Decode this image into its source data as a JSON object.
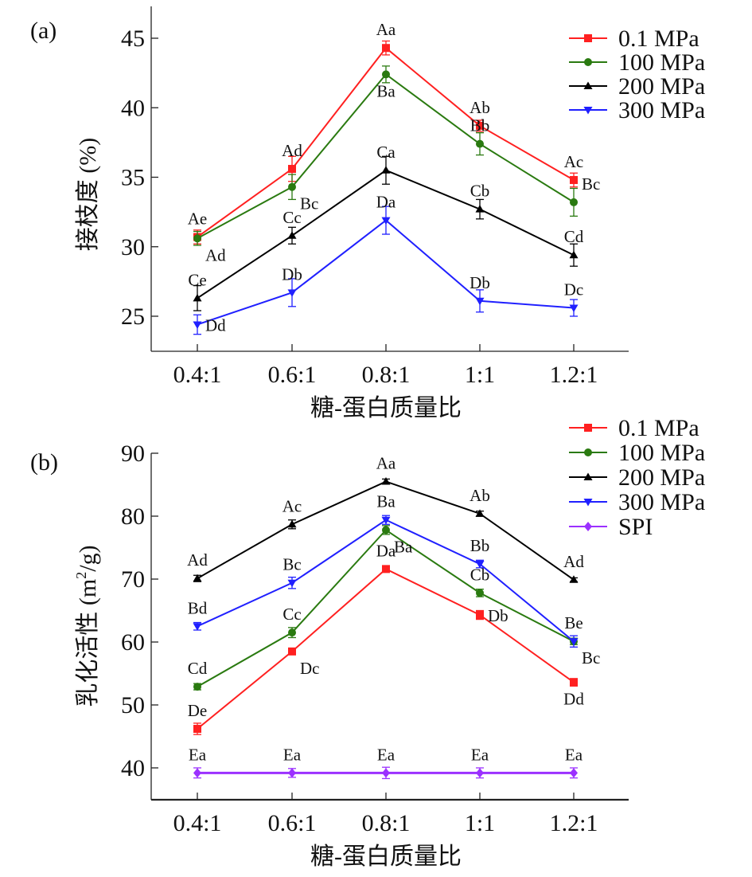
{
  "chart_data": [
    {
      "type": "line",
      "panel_label": "(a)",
      "title": "",
      "xlabel": "糖-蛋白质量比",
      "ylabel": "接枝度 (%)",
      "categories": [
        "0.4:1",
        "0.6:1",
        "0.8:1",
        "1:1",
        "1.2:1"
      ],
      "ylim": [
        22.5,
        47.5
      ],
      "yticks": [
        25,
        30,
        35,
        40,
        45
      ],
      "grid": false,
      "legend_position": "top-right",
      "series": [
        {
          "name": "0.1 MPa",
          "color": "#ff2020",
          "marker": "square",
          "values": [
            30.7,
            35.6,
            44.3,
            38.7,
            34.8
          ],
          "errors": [
            0.5,
            0.9,
            0.5,
            0.4,
            0.5
          ],
          "labels": [
            "Ae",
            "Ad",
            "Aa",
            "Ab",
            "Ac"
          ]
        },
        {
          "name": "100 MPa",
          "color": "#2a7a10",
          "marker": "circle",
          "values": [
            30.6,
            34.3,
            42.4,
            37.4,
            33.2
          ],
          "errors": [
            0.5,
            0.9,
            0.6,
            0.8,
            1.0
          ],
          "labels": [
            "Ad",
            "Bc",
            "Ba",
            "Bb",
            "Bc"
          ]
        },
        {
          "name": "200 MPa",
          "color": "#000000",
          "marker": "triangle-up",
          "values": [
            26.3,
            30.8,
            35.5,
            32.7,
            29.4
          ],
          "errors": [
            0.9,
            0.6,
            1.0,
            0.7,
            0.8
          ],
          "labels": [
            "Ce",
            "Cc",
            "Ca",
            "Cb",
            "Cd"
          ]
        },
        {
          "name": "300 MPa",
          "color": "#2020ff",
          "marker": "triangle-down",
          "values": [
            24.4,
            26.7,
            31.9,
            26.1,
            25.6
          ],
          "errors": [
            0.7,
            1.0,
            1.0,
            0.8,
            0.6
          ],
          "labels": [
            "Dd",
            "Db",
            "Da",
            "Db",
            "Dc"
          ]
        }
      ]
    },
    {
      "type": "line",
      "panel_label": "(b)",
      "title": "",
      "xlabel": "糖-蛋白质量比",
      "ylabel": "乳化活性 (m²/g)",
      "categories": [
        "0.4:1",
        "0.6:1",
        "0.8:1",
        "1:1",
        "1.2:1"
      ],
      "ylim": [
        35,
        90
      ],
      "yticks": [
        40,
        50,
        60,
        70,
        80,
        90
      ],
      "grid": false,
      "legend_position": "top-right",
      "series": [
        {
          "name": "0.1 MPa",
          "color": "#ff2020",
          "marker": "square",
          "values": [
            46.2,
            58.5,
            71.6,
            64.3,
            53.6
          ],
          "errors": [
            0.9,
            0.5,
            0.5,
            0.7,
            0.6
          ],
          "labels": [
            "De",
            "Dc",
            "Da",
            "Db",
            "Dd"
          ]
        },
        {
          "name": "100 MPa",
          "color": "#2a7a10",
          "marker": "circle",
          "values": [
            52.9,
            61.5,
            77.8,
            67.8,
            60.1
          ],
          "errors": [
            0.5,
            0.8,
            0.7,
            0.6,
            0.5
          ],
          "labels": [
            "Cd",
            "Cc",
            "Ba",
            "Cb",
            "Bc"
          ]
        },
        {
          "name": "200 MPa",
          "color": "#000000",
          "marker": "triangle-up",
          "values": [
            70.1,
            78.7,
            85.5,
            80.4,
            69.9
          ],
          "errors": [
            0.5,
            0.7,
            0.4,
            0.4,
            0.3
          ],
          "labels": [
            "Ad",
            "Ac",
            "Aa",
            "Ab",
            "Ad"
          ]
        },
        {
          "name": "300 MPa",
          "color": "#2020ff",
          "marker": "triangle-down",
          "values": [
            62.5,
            69.4,
            79.4,
            72.4,
            60.1
          ],
          "errors": [
            0.6,
            0.9,
            0.7,
            0.6,
            0.9
          ],
          "labels": [
            "Bd",
            "Bc",
            "Ba",
            "Bb",
            "Be"
          ]
        },
        {
          "name": "SPI",
          "color": "#9b30ff",
          "marker": "diamond",
          "values": [
            39.2,
            39.2,
            39.2,
            39.2,
            39.2
          ],
          "errors": [
            0.8,
            0.7,
            0.9,
            0.8,
            0.8
          ],
          "labels": [
            "Ea",
            "Ea",
            "Ea",
            "Ea",
            "Ea"
          ]
        }
      ]
    }
  ]
}
